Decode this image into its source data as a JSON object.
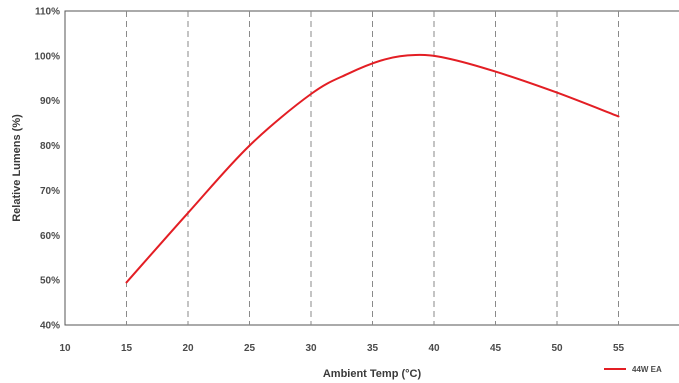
{
  "chart_data": {
    "type": "line",
    "xlabel": "Ambient Temp (°C)",
    "ylabel": "Relative Lumens (%)",
    "xlim": [
      10,
      60
    ],
    "ylim": [
      40,
      110
    ],
    "x_ticks": [
      10,
      15,
      20,
      25,
      30,
      35,
      40,
      45,
      50,
      55
    ],
    "x_tick_labels": [
      "10",
      "15",
      "20",
      "25",
      "30",
      "35",
      "40",
      "45",
      "50",
      "55"
    ],
    "y_ticks": [
      40,
      50,
      60,
      70,
      80,
      90,
      100,
      110
    ],
    "y_tick_labels": [
      "40%",
      "50%",
      "60%",
      "70%",
      "80%",
      "90%",
      "100%",
      "110%"
    ],
    "grid": {
      "vertical": true,
      "horizontal": false,
      "style": "dashed"
    },
    "legend_position": "bottom-right",
    "series": [
      {
        "name": "44W EA",
        "color": "#e31e24",
        "x": [
          15,
          20,
          25,
          30,
          33,
          36,
          38.5,
          41,
          45,
          50,
          55
        ],
        "y": [
          49.5,
          65,
          80,
          91.5,
          96,
          99.2,
          100.2,
          99.5,
          96.5,
          91.8,
          86.5
        ]
      }
    ]
  }
}
